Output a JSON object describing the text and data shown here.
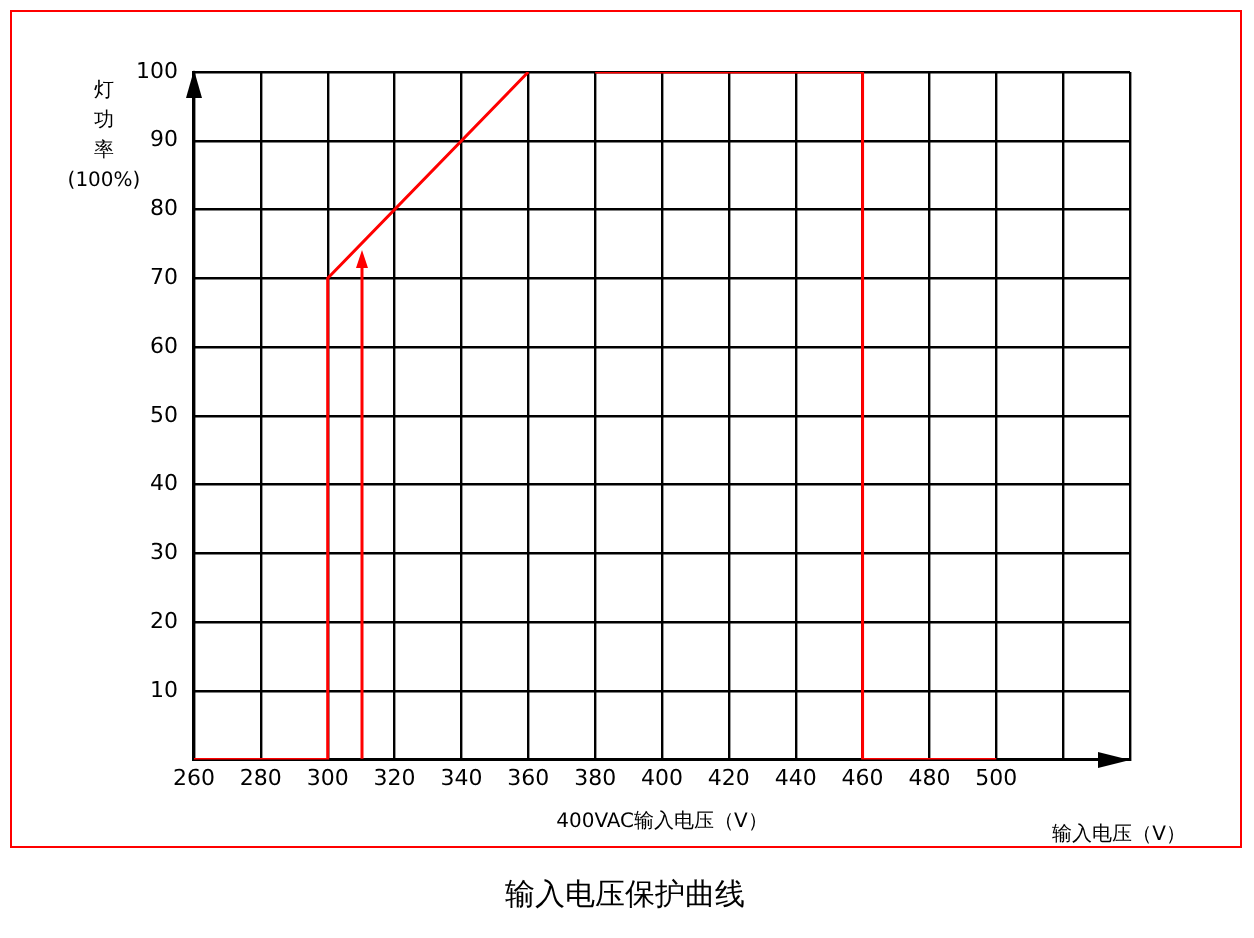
{
  "chart_data": {
    "type": "line",
    "title": "输入电压保护曲线",
    "xlabel": "400VAC输入电压（V）",
    "ylabel": "灯功率(100%)",
    "annotations": [
      "输入电压（V）"
    ],
    "series": [
      {
        "x": [
          260,
          300,
          300,
          360
        ],
        "values": [
          0,
          0,
          70,
          100
        ],
        "color": "#ff0000"
      },
      {
        "x": [
          380,
          460,
          460,
          500
        ],
        "values": [
          100,
          100,
          0,
          0
        ],
        "color": "#ff0000"
      }
    ],
    "xlim": [
      260,
      540
    ],
    "xticks": [
      260,
      280,
      300,
      320,
      340,
      360,
      380,
      400,
      420,
      440,
      460,
      480,
      500,
      {
        "value": 520,
        "label": null
      },
      {
        "value": 540,
        "label": null
      }
    ],
    "ylim": [
      0,
      100
    ],
    "yticks": [
      {
        "value": 0,
        "label": null
      },
      10,
      20,
      30,
      40,
      50,
      60,
      70,
      80,
      90,
      100
    ],
    "grid": true,
    "legend": false,
    "marker": "none",
    "line_style": "solid"
  }
}
